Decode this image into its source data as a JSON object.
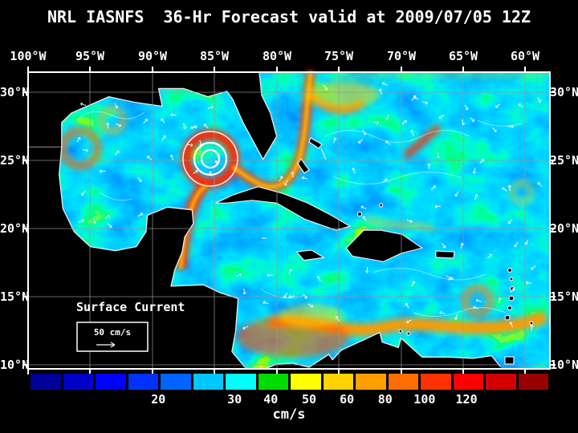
{
  "title": "NRL IASNFS  36-Hr Forecast valid at 2009/07/05 12Z",
  "axes": {
    "lon": [
      "100°W",
      "95°W",
      "90°W",
      "85°W",
      "80°W",
      "75°W",
      "70°W",
      "65°W",
      "60°W"
    ],
    "lat_left": [
      "30°N",
      "25°N",
      "20°N",
      "15°N",
      "10°N"
    ],
    "lat_right": [
      "30°N",
      "25°N",
      "20°N",
      "15°N",
      "10°N"
    ]
  },
  "map": {
    "annotation_label": "Surface Current",
    "scale_label": "50 cm/s"
  },
  "colorbar": {
    "unit": "cm/s",
    "ticks": [
      "20",
      "30",
      "40",
      "50",
      "60",
      "80",
      "100",
      "120"
    ],
    "tick_positions_pct": [
      24.7,
      39.4,
      46.4,
      53.8,
      61.1,
      68.5,
      76.1,
      84.2
    ],
    "colors": [
      "#000096",
      "#0000c8",
      "#0000ff",
      "#0032ff",
      "#0064ff",
      "#00c8ff",
      "#00ffff",
      "#00dc00",
      "#ffff00",
      "#ffd200",
      "#ffa000",
      "#ff6e00",
      "#ff3200",
      "#ff0000",
      "#d20000",
      "#960000"
    ]
  }
}
